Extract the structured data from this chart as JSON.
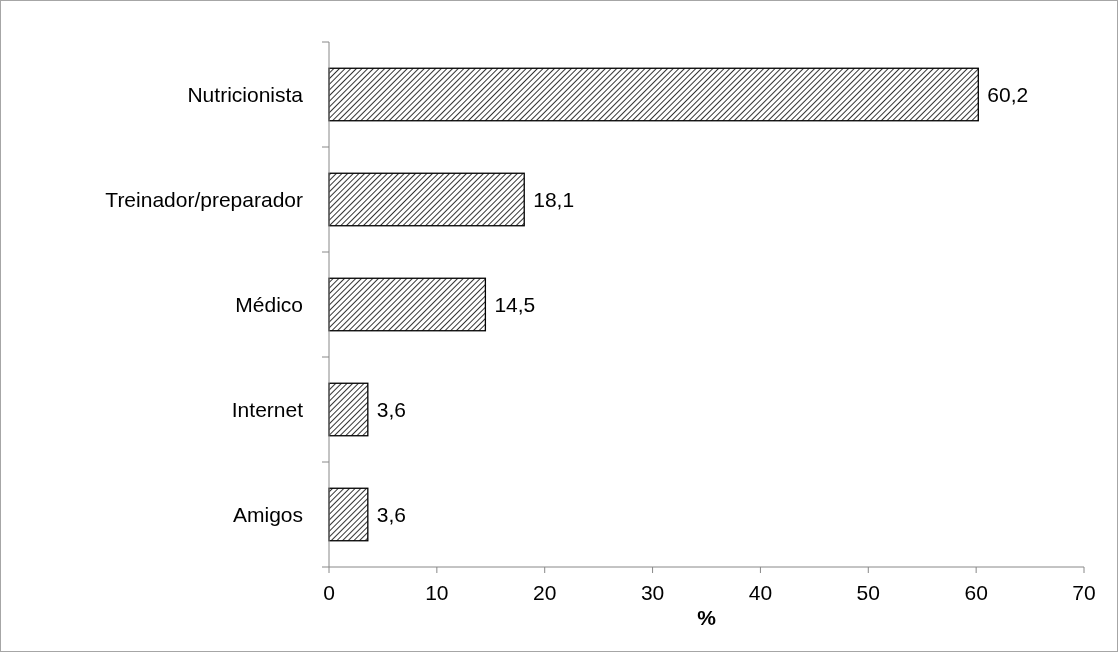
{
  "chart_data": {
    "type": "bar",
    "orientation": "horizontal",
    "categories": [
      "Nutricionista",
      "Treinador/preparador",
      "Médico",
      "Internet",
      "Amigos"
    ],
    "values": [
      60.2,
      18.1,
      14.5,
      3.6,
      3.6
    ],
    "value_labels": [
      "60,2",
      "18,1",
      "14,5",
      "3,6",
      "3,6"
    ],
    "color": "#000000",
    "xlim": [
      0,
      70
    ],
    "xticks": [
      0,
      10,
      20,
      30,
      40,
      50,
      60,
      70
    ],
    "xlabel": "%",
    "grid": false
  }
}
